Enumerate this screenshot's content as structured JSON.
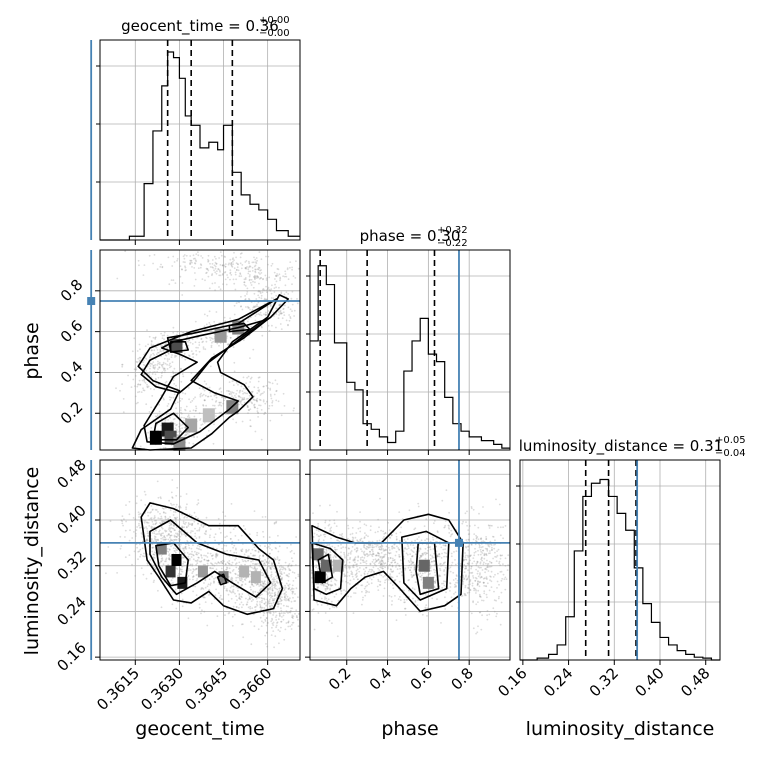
{
  "chart_data": {
    "type": "corner",
    "parameters": [
      "geocent_time",
      "phase",
      "luminosity_distance"
    ],
    "truth": {
      "geocent_time": 0.36,
      "phase": 0.75,
      "luminosity_distance": 0.36
    },
    "titles": {
      "geocent_time": {
        "main": "geocent_time = 0.36",
        "sup": "+0.00",
        "sub": "−0.00"
      },
      "phase": {
        "main": "phase = 0.30",
        "sup": "+0.32",
        "sub": "−0.22"
      },
      "luminosity_distance": {
        "main": "luminosity_distance = 0.31",
        "sup": "+0.05",
        "sub": "−0.04"
      }
    },
    "axis_labels": {
      "geocent_time": "geocent_time",
      "phase": "phase",
      "luminosity_distance": "luminosity_distance"
    },
    "ranges": {
      "geocent_time": [
        0.3603,
        0.3671
      ],
      "phase": [
        0.02,
        1.0
      ],
      "luminosity_distance": [
        0.155,
        0.505
      ]
    },
    "ticks": {
      "geocent_time": [
        "0.3615",
        "0.3630",
        "0.3645",
        "0.3660"
      ],
      "phase": [
        "0.2",
        "0.4",
        "0.6",
        "0.8"
      ],
      "luminosity_distance": [
        "0.16",
        "0.24",
        "0.32",
        "0.40",
        "0.48"
      ]
    },
    "quantiles": {
      "geocent_time": [
        0.3626,
        0.3634,
        0.3648
      ],
      "phase": [
        0.07,
        0.3,
        0.63
      ],
      "luminosity_distance": [
        0.27,
        0.31,
        0.358
      ]
    },
    "hist_geocent_time": {
      "edges": [
        0.3603,
        0.3613,
        0.3618,
        0.3621,
        0.3624,
        0.3626,
        0.3628,
        0.363,
        0.3632,
        0.3634,
        0.3637,
        0.364,
        0.3643,
        0.3645,
        0.3648,
        0.3651,
        0.3654,
        0.3657,
        0.366,
        0.3663,
        0.3667,
        0.3671
      ],
      "counts": [
        0.0,
        0.02,
        0.3,
        0.58,
        0.82,
        1.0,
        0.97,
        0.86,
        0.66,
        0.61,
        0.49,
        0.52,
        0.48,
        0.61,
        0.36,
        0.24,
        0.19,
        0.16,
        0.11,
        0.05,
        0.02
      ]
    },
    "hist_phase": {
      "edges": [
        0.02,
        0.06,
        0.1,
        0.14,
        0.2,
        0.24,
        0.28,
        0.32,
        0.36,
        0.4,
        0.44,
        0.48,
        0.52,
        0.56,
        0.6,
        0.64,
        0.68,
        0.72,
        0.76,
        0.8,
        0.86,
        0.92,
        0.96,
        1.0
      ],
      "counts": [
        0.58,
        0.98,
        0.88,
        0.57,
        0.36,
        0.32,
        0.14,
        0.11,
        0.07,
        0.04,
        0.1,
        0.42,
        0.58,
        0.7,
        0.51,
        0.47,
        0.28,
        0.14,
        0.1,
        0.07,
        0.05,
        0.03,
        0.01
      ]
    },
    "hist_luminosity_distance": {
      "edges": [
        0.155,
        0.185,
        0.205,
        0.22,
        0.235,
        0.25,
        0.265,
        0.28,
        0.295,
        0.31,
        0.325,
        0.34,
        0.355,
        0.37,
        0.385,
        0.4,
        0.415,
        0.43,
        0.445,
        0.46,
        0.475,
        0.49,
        0.505
      ],
      "counts": [
        0.0,
        0.01,
        0.03,
        0.08,
        0.23,
        0.58,
        0.87,
        0.94,
        0.96,
        0.87,
        0.78,
        0.69,
        0.49,
        0.3,
        0.2,
        0.12,
        0.08,
        0.05,
        0.03,
        0.015,
        0.01,
        0.0
      ]
    },
    "contours_time_phase": [
      [
        [
          0.3614,
          0.03
        ],
        [
          0.362,
          0.02
        ],
        [
          0.3634,
          0.03
        ],
        [
          0.3641,
          0.1
        ],
        [
          0.3647,
          0.18
        ],
        [
          0.365,
          0.21
        ],
        [
          0.3655,
          0.28
        ],
        [
          0.3652,
          0.34
        ],
        [
          0.3644,
          0.4
        ],
        [
          0.3643,
          0.45
        ],
        [
          0.3648,
          0.55
        ],
        [
          0.366,
          0.67
        ],
        [
          0.3664,
          0.78
        ],
        [
          0.3667,
          0.76
        ],
        [
          0.3661,
          0.67
        ],
        [
          0.3652,
          0.58
        ],
        [
          0.364,
          0.45
        ],
        [
          0.3635,
          0.36
        ],
        [
          0.363,
          0.3
        ],
        [
          0.3622,
          0.33
        ],
        [
          0.3617,
          0.39
        ],
        [
          0.362,
          0.46
        ],
        [
          0.3627,
          0.51
        ],
        [
          0.3626,
          0.57
        ],
        [
          0.3634,
          0.59
        ],
        [
          0.365,
          0.64
        ],
        [
          0.3663,
          0.76
        ],
        [
          0.365,
          0.66
        ],
        [
          0.3634,
          0.6
        ],
        [
          0.362,
          0.52
        ],
        [
          0.3616,
          0.43
        ],
        [
          0.3621,
          0.36
        ],
        [
          0.363,
          0.31
        ],
        [
          0.3627,
          0.22
        ],
        [
          0.3617,
          0.12
        ],
        [
          0.3614,
          0.03
        ]
      ],
      [
        [
          0.3619,
          0.06
        ],
        [
          0.3628,
          0.05
        ],
        [
          0.3637,
          0.11
        ],
        [
          0.3647,
          0.22
        ],
        [
          0.365,
          0.26
        ],
        [
          0.3642,
          0.3
        ],
        [
          0.3634,
          0.36
        ],
        [
          0.3641,
          0.47
        ],
        [
          0.3652,
          0.57
        ],
        [
          0.366,
          0.66
        ],
        [
          0.365,
          0.62
        ],
        [
          0.3637,
          0.58
        ],
        [
          0.3628,
          0.55
        ],
        [
          0.3624,
          0.52
        ],
        [
          0.363,
          0.49
        ],
        [
          0.3636,
          0.45
        ],
        [
          0.3628,
          0.38
        ],
        [
          0.3624,
          0.28
        ],
        [
          0.3618,
          0.14
        ],
        [
          0.3619,
          0.06
        ]
      ],
      [
        [
          0.3621,
          0.07
        ],
        [
          0.3629,
          0.07
        ],
        [
          0.3633,
          0.13
        ],
        [
          0.3628,
          0.2
        ],
        [
          0.3622,
          0.15
        ],
        [
          0.3621,
          0.07
        ]
      ],
      [
        [
          0.3627,
          0.5
        ],
        [
          0.3633,
          0.51
        ],
        [
          0.3632,
          0.55
        ],
        [
          0.3627,
          0.55
        ],
        [
          0.3627,
          0.5
        ]
      ],
      [
        [
          0.3647,
          0.6
        ],
        [
          0.3654,
          0.61
        ],
        [
          0.3652,
          0.64
        ],
        [
          0.3647,
          0.63
        ],
        [
          0.3647,
          0.6
        ]
      ]
    ],
    "contours_time_dist": [
      [
        [
          0.3617,
          0.405
        ],
        [
          0.362,
          0.43
        ],
        [
          0.3628,
          0.42
        ],
        [
          0.364,
          0.39
        ],
        [
          0.365,
          0.39
        ],
        [
          0.3657,
          0.35
        ],
        [
          0.3662,
          0.33
        ],
        [
          0.3665,
          0.28
        ],
        [
          0.3662,
          0.245
        ],
        [
          0.3653,
          0.235
        ],
        [
          0.3645,
          0.25
        ],
        [
          0.364,
          0.275
        ],
        [
          0.3634,
          0.255
        ],
        [
          0.3628,
          0.26
        ],
        [
          0.3623,
          0.3
        ],
        [
          0.3619,
          0.33
        ],
        [
          0.3617,
          0.405
        ]
      ],
      [
        [
          0.362,
          0.38
        ],
        [
          0.3627,
          0.4
        ],
        [
          0.3636,
          0.36
        ],
        [
          0.3646,
          0.34
        ],
        [
          0.3657,
          0.33
        ],
        [
          0.3661,
          0.29
        ],
        [
          0.3656,
          0.265
        ],
        [
          0.3648,
          0.29
        ],
        [
          0.3642,
          0.31
        ],
        [
          0.3636,
          0.29
        ],
        [
          0.3629,
          0.27
        ],
        [
          0.3624,
          0.3
        ],
        [
          0.362,
          0.34
        ],
        [
          0.362,
          0.38
        ]
      ],
      [
        [
          0.3622,
          0.355
        ],
        [
          0.3628,
          0.36
        ],
        [
          0.3633,
          0.33
        ],
        [
          0.3632,
          0.29
        ],
        [
          0.3627,
          0.285
        ],
        [
          0.3623,
          0.32
        ],
        [
          0.3622,
          0.355
        ]
      ],
      [
        [
          0.3643,
          0.3
        ],
        [
          0.3645,
          0.305
        ],
        [
          0.3646,
          0.29
        ],
        [
          0.3644,
          0.287
        ],
        [
          0.3643,
          0.3
        ]
      ]
    ],
    "contours_phase_dist": [
      [
        [
          0.03,
          0.39
        ],
        [
          0.15,
          0.37
        ],
        [
          0.24,
          0.36
        ],
        [
          0.37,
          0.36
        ],
        [
          0.48,
          0.4
        ],
        [
          0.6,
          0.41
        ],
        [
          0.7,
          0.4
        ],
        [
          0.77,
          0.36
        ],
        [
          0.76,
          0.27
        ],
        [
          0.68,
          0.25
        ],
        [
          0.56,
          0.24
        ],
        [
          0.46,
          0.28
        ],
        [
          0.38,
          0.31
        ],
        [
          0.29,
          0.3
        ],
        [
          0.22,
          0.28
        ],
        [
          0.15,
          0.25
        ],
        [
          0.04,
          0.26
        ],
        [
          0.03,
          0.39
        ]
      ],
      [
        [
          0.03,
          0.36
        ],
        [
          0.12,
          0.35
        ],
        [
          0.18,
          0.33
        ],
        [
          0.17,
          0.28
        ],
        [
          0.1,
          0.27
        ],
        [
          0.04,
          0.28
        ],
        [
          0.03,
          0.36
        ]
      ],
      [
        [
          0.47,
          0.37
        ],
        [
          0.59,
          0.38
        ],
        [
          0.7,
          0.36
        ],
        [
          0.69,
          0.28
        ],
        [
          0.56,
          0.26
        ],
        [
          0.48,
          0.29
        ],
        [
          0.47,
          0.37
        ]
      ],
      [
        [
          0.06,
          0.33
        ],
        [
          0.11,
          0.34
        ],
        [
          0.13,
          0.3
        ],
        [
          0.08,
          0.29
        ],
        [
          0.06,
          0.33
        ]
      ],
      [
        [
          0.55,
          0.36
        ],
        [
          0.63,
          0.36
        ],
        [
          0.65,
          0.28
        ],
        [
          0.56,
          0.27
        ],
        [
          0.54,
          0.31
        ],
        [
          0.55,
          0.36
        ]
      ]
    ],
    "dense_time_phase": [
      [
        0.3622,
        0.08,
        1.0
      ],
      [
        0.3626,
        0.12,
        0.9
      ],
      [
        0.3627,
        0.08,
        0.7
      ],
      [
        0.363,
        0.05,
        0.45
      ],
      [
        0.3634,
        0.14,
        0.35
      ],
      [
        0.364,
        0.19,
        0.25
      ],
      [
        0.3629,
        0.53,
        0.7
      ],
      [
        0.3648,
        0.23,
        0.5
      ],
      [
        0.365,
        0.62,
        0.5
      ],
      [
        0.3644,
        0.58,
        0.4
      ]
    ],
    "dense_time_dist": [
      [
        0.3627,
        0.31,
        0.8
      ],
      [
        0.3629,
        0.33,
        1.0
      ],
      [
        0.3631,
        0.29,
        0.9
      ],
      [
        0.3624,
        0.35,
        0.5
      ],
      [
        0.3638,
        0.31,
        0.4
      ],
      [
        0.3645,
        0.3,
        0.5
      ],
      [
        0.3652,
        0.31,
        0.3
      ],
      [
        0.3656,
        0.3,
        0.3
      ]
    ],
    "dense_phase_dist": [
      [
        0.07,
        0.3,
        1.0
      ],
      [
        0.06,
        0.34,
        0.6
      ],
      [
        0.1,
        0.32,
        0.6
      ],
      [
        0.58,
        0.32,
        0.6
      ],
      [
        0.6,
        0.29,
        0.5
      ],
      [
        0.16,
        0.32,
        0.3
      ]
    ]
  },
  "colors": {
    "truth": "#4682b4",
    "hist": "#000000",
    "grid": "#b0b0b0",
    "scatter": "#9a9a9a"
  }
}
